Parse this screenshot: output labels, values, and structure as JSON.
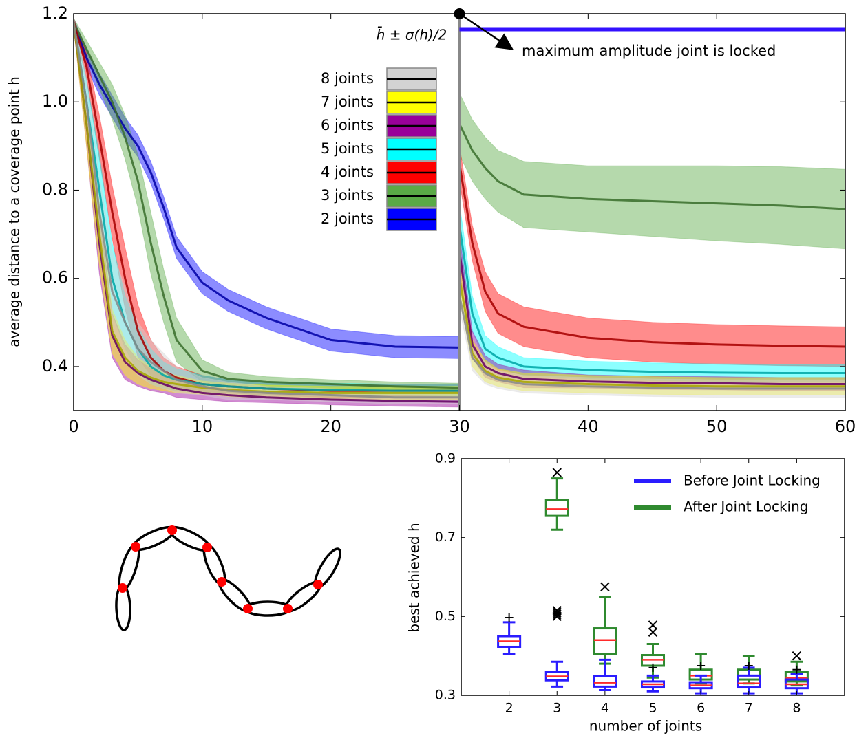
{
  "chart_data": [
    {
      "type": "line",
      "ylabel": "average distance to a coverage point h",
      "x": [
        0,
        1,
        2,
        3,
        4,
        5,
        6,
        7,
        8,
        10,
        12,
        15,
        20,
        25,
        30,
        30,
        31,
        32,
        33,
        35,
        40,
        45,
        50,
        55,
        60
      ],
      "xlim": [
        0,
        60
      ],
      "xticks": [
        0,
        10,
        20,
        30,
        40,
        50,
        60
      ],
      "ylim": [
        0.3,
        1.2
      ],
      "yticks": [
        0.4,
        0.6,
        0.8,
        {
          "value": 1,
          "label": "1.0"
        },
        1.2
      ],
      "legend_title": "h̄ ± σ(h)/2",
      "annotation": {
        "text": "maximum amplitude joint is locked",
        "x": 30,
        "y": 1.2
      },
      "locked_line": {
        "x": [
          30,
          60
        ],
        "y": 1.165,
        "color": "#3311ff"
      },
      "series": [
        {
          "name": "8 joints",
          "color": "#d3d3d3",
          "values": [
            1.18,
            1.0,
            0.75,
            0.57,
            0.5,
            0.44,
            0.41,
            0.39,
            0.37,
            0.355,
            0.345,
            0.34,
            0.335,
            0.33,
            0.33,
            0.56,
            0.42,
            0.385,
            0.37,
            0.36,
            0.355,
            0.352,
            0.35,
            0.35,
            0.35
          ],
          "half_width": [
            0.01,
            0.05,
            0.08,
            0.09,
            0.08,
            0.06,
            0.05,
            0.04,
            0.03,
            0.02,
            0.02,
            0.015,
            0.015,
            0.015,
            0.015,
            0.03,
            0.03,
            0.025,
            0.02,
            0.02,
            0.02,
            0.02,
            0.02,
            0.02,
            0.02
          ]
        },
        {
          "name": "7 joints",
          "color": "#ffff00",
          "values": [
            1.18,
            0.95,
            0.7,
            0.48,
            0.42,
            0.39,
            0.375,
            0.365,
            0.36,
            0.352,
            0.347,
            0.343,
            0.34,
            0.34,
            0.34,
            0.6,
            0.43,
            0.39,
            0.375,
            0.365,
            0.36,
            0.357,
            0.355,
            0.355,
            0.355
          ],
          "half_width": [
            0.01,
            0.05,
            0.07,
            0.05,
            0.04,
            0.03,
            0.025,
            0.02,
            0.02,
            0.015,
            0.015,
            0.015,
            0.015,
            0.015,
            0.015,
            0.04,
            0.03,
            0.025,
            0.02,
            0.02,
            0.02,
            0.02,
            0.02,
            0.02,
            0.02
          ]
        },
        {
          "name": "6 joints",
          "color": "#990099",
          "values": [
            1.18,
            0.95,
            0.68,
            0.47,
            0.41,
            0.385,
            0.37,
            0.36,
            0.35,
            0.34,
            0.335,
            0.33,
            0.325,
            0.322,
            0.32,
            0.66,
            0.45,
            0.4,
            0.385,
            0.372,
            0.366,
            0.363,
            0.362,
            0.36,
            0.36
          ],
          "half_width": [
            0.01,
            0.05,
            0.07,
            0.05,
            0.04,
            0.03,
            0.025,
            0.02,
            0.02,
            0.015,
            0.015,
            0.012,
            0.012,
            0.012,
            0.012,
            0.04,
            0.03,
            0.025,
            0.02,
            0.02,
            0.015,
            0.015,
            0.015,
            0.015,
            0.015
          ]
        },
        {
          "name": "5 joints",
          "color": "#00ffff",
          "values": [
            1.18,
            1.0,
            0.8,
            0.6,
            0.5,
            0.44,
            0.4,
            0.38,
            0.37,
            0.36,
            0.355,
            0.35,
            0.347,
            0.345,
            0.345,
            0.72,
            0.52,
            0.44,
            0.42,
            0.4,
            0.392,
            0.388,
            0.386,
            0.385,
            0.385
          ],
          "half_width": [
            0.01,
            0.05,
            0.08,
            0.08,
            0.06,
            0.05,
            0.04,
            0.03,
            0.025,
            0.02,
            0.015,
            0.015,
            0.015,
            0.015,
            0.015,
            0.05,
            0.04,
            0.03,
            0.025,
            0.02,
            0.02,
            0.02,
            0.02,
            0.02,
            0.02
          ]
        },
        {
          "name": "4 joints",
          "color": "#ff0000",
          "values": [
            1.18,
            1.08,
            0.92,
            0.75,
            0.6,
            0.48,
            0.42,
            0.39,
            0.375,
            0.36,
            0.355,
            0.35,
            0.345,
            0.345,
            0.345,
            0.86,
            0.68,
            0.57,
            0.52,
            0.49,
            0.465,
            0.455,
            0.45,
            0.447,
            0.445
          ],
          "half_width": [
            0.01,
            0.03,
            0.05,
            0.06,
            0.07,
            0.06,
            0.04,
            0.03,
            0.025,
            0.02,
            0.015,
            0.015,
            0.015,
            0.015,
            0.015,
            0.04,
            0.04,
            0.045,
            0.045,
            0.045,
            0.045,
            0.045,
            0.045,
            0.045,
            0.045
          ]
        },
        {
          "name": "3 joints",
          "color": "#5aaa46",
          "values": [
            1.18,
            1.12,
            1.06,
            1.0,
            0.92,
            0.82,
            0.68,
            0.56,
            0.46,
            0.39,
            0.372,
            0.365,
            0.36,
            0.355,
            0.352,
            0.95,
            0.89,
            0.85,
            0.82,
            0.79,
            0.78,
            0.775,
            0.77,
            0.765,
            0.757
          ],
          "half_width": [
            0.01,
            0.02,
            0.03,
            0.04,
            0.05,
            0.06,
            0.07,
            0.06,
            0.05,
            0.025,
            0.015,
            0.012,
            0.01,
            0.01,
            0.01,
            0.07,
            0.07,
            0.07,
            0.07,
            0.075,
            0.075,
            0.08,
            0.085,
            0.088,
            0.09
          ]
        },
        {
          "name": "2 joints",
          "color": "#0000ff",
          "values": [
            1.18,
            1.1,
            1.04,
            0.99,
            0.94,
            0.9,
            0.84,
            0.76,
            0.67,
            0.59,
            0.55,
            0.51,
            0.46,
            0.445,
            0.443,
            null,
            null,
            null,
            null,
            null,
            null,
            null,
            null,
            null,
            null
          ],
          "half_width": [
            0.01,
            0.02,
            0.025,
            0.025,
            0.025,
            0.025,
            0.025,
            0.025,
            0.025,
            0.025,
            0.025,
            0.025,
            0.025,
            0.025,
            0.025,
            null,
            null,
            null,
            null,
            null,
            null,
            null,
            null,
            null,
            null
          ]
        }
      ]
    },
    {
      "type": "box",
      "ylabel": "best achieved h",
      "xlabel": "number of joints",
      "x": [
        2,
        3,
        4,
        5,
        6,
        7,
        8
      ],
      "xlim": [
        1,
        9
      ],
      "xticks": [
        2,
        3,
        4,
        5,
        6,
        7,
        8
      ],
      "ylim": [
        0.3,
        0.9
      ],
      "yticks": [
        0.3,
        0.5,
        0.7,
        0.9
      ],
      "median_color": "#ff2a2a",
      "legend": "upper right",
      "series": [
        {
          "name": "Before Joint Locking",
          "color": "#2a1cff",
          "marker": "+",
          "values": [
            {
              "whislo": 0.405,
              "q1": 0.423,
              "med": 0.437,
              "q3": 0.45,
              "whishi": 0.485,
              "fliers": [
                0.497
              ]
            },
            {
              "whislo": 0.322,
              "q1": 0.338,
              "med": 0.348,
              "q3": 0.36,
              "whishi": 0.385,
              "fliers": []
            },
            {
              "whislo": 0.313,
              "q1": 0.322,
              "med": 0.332,
              "q3": 0.348,
              "whishi": 0.39,
              "fliers": []
            },
            {
              "whislo": 0.31,
              "q1": 0.32,
              "med": 0.328,
              "q3": 0.335,
              "whishi": 0.35,
              "fliers": [
                0.37
              ]
            },
            {
              "whislo": 0.305,
              "q1": 0.318,
              "med": 0.325,
              "q3": 0.333,
              "whishi": 0.35,
              "fliers": [
                0.375
              ]
            },
            {
              "whislo": 0.305,
              "q1": 0.32,
              "med": 0.33,
              "q3": 0.35,
              "whishi": 0.37,
              "fliers": [
                0.375
              ]
            },
            {
              "whislo": 0.305,
              "q1": 0.318,
              "med": 0.328,
              "q3": 0.34,
              "whishi": 0.355,
              "fliers": [
                0.365
              ]
            }
          ]
        },
        {
          "name": "After Joint Locking",
          "color": "#2f8a2f",
          "marker": "x",
          "values": [
            null,
            {
              "whislo": 0.72,
              "q1": 0.755,
              "med": 0.772,
              "q3": 0.795,
              "whishi": 0.85,
              "fliers": [
                0.865,
                0.5,
                0.505,
                0.51,
                0.515
              ]
            },
            {
              "whislo": 0.38,
              "q1": 0.405,
              "med": 0.44,
              "q3": 0.47,
              "whishi": 0.55,
              "fliers": [
                0.575
              ]
            },
            {
              "whislo": 0.345,
              "q1": 0.375,
              "med": 0.39,
              "q3": 0.402,
              "whishi": 0.43,
              "fliers": [
                0.46,
                0.478
              ]
            },
            {
              "whislo": 0.33,
              "q1": 0.34,
              "med": 0.35,
              "q3": 0.365,
              "whishi": 0.405,
              "fliers": []
            },
            {
              "whislo": 0.33,
              "q1": 0.34,
              "med": 0.35,
              "q3": 0.365,
              "whishi": 0.4,
              "fliers": []
            },
            {
              "whislo": 0.325,
              "q1": 0.335,
              "med": 0.345,
              "q3": 0.36,
              "whishi": 0.385,
              "fliers": [
                0.4
              ]
            }
          ]
        }
      ]
    }
  ]
}
